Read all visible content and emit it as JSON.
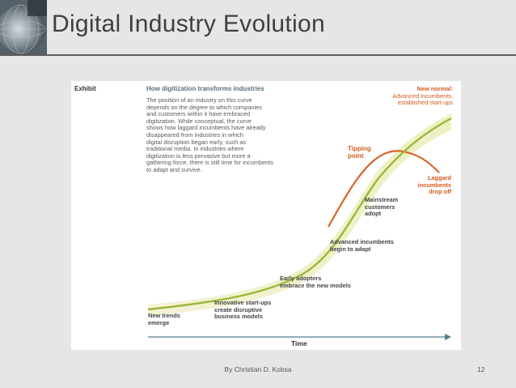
{
  "slide": {
    "title": "Digital Industry Evolution",
    "author": "By Christian D. Kobsa",
    "page_number": "12"
  },
  "exhibit": {
    "tag": "Exhibit",
    "heading": "How digitization transforms industries",
    "body_lines": [
      "The position of an industry on this curve",
      "depends on the degree to which companies",
      "and customers within it have embraced",
      "digitization. While conceptual, the curve",
      "shows how laggard incumbents have already",
      "disappeared from industries in which",
      "digital disruption began early, such as",
      "traditional media. In industries where",
      "digitization is less pervasive but more a",
      "gathering force, there is still time for incumbents",
      "to adapt and survive."
    ],
    "new_normal": [
      "New normal:",
      "Advanced incumbents,",
      "established start-ups"
    ],
    "tipping_point": [
      "Tipping",
      "point"
    ],
    "laggard": [
      "Laggard",
      "incumbents",
      "drop off"
    ],
    "mainstream": [
      "Mainstream",
      "customers",
      "adopt"
    ],
    "advanced": [
      "Advanced incumbents",
      "begin to adapt"
    ],
    "early": [
      "Early adopters",
      "embrace the new models"
    ],
    "innovative": [
      "Innovative start-ups",
      "create disruptive",
      "business models"
    ],
    "new_trends": [
      "New trends",
      "emerge"
    ],
    "axis_label": "Time"
  },
  "colors": {
    "green_curve": "#9ab83a",
    "orange_curve": "#d9662a",
    "axis": "#4f7c8e",
    "title_text": "#3f3f3f"
  }
}
